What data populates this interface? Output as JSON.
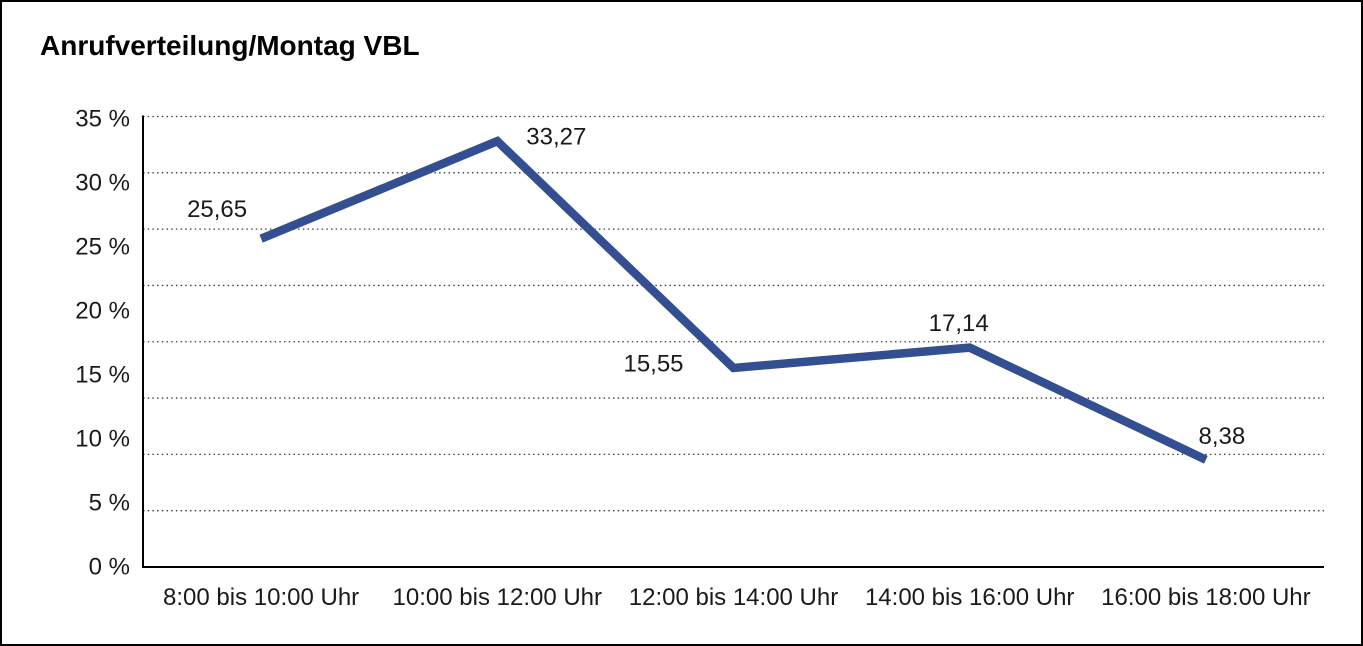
{
  "title": "Anrufverteilung/Montag VBL",
  "chart_data": {
    "type": "line",
    "title": "Anrufverteilung/Montag VBL",
    "categories": [
      "8:00 bis 10:00 Uhr",
      "10:00 bis 12:00 Uhr",
      "12:00 bis 14:00 Uhr",
      "14:00 bis 16:00 Uhr",
      "16:00 bis 18:00 Uhr"
    ],
    "values": [
      25.65,
      33.27,
      15.55,
      17.14,
      8.38
    ],
    "value_labels": [
      "25,65",
      "33,27",
      "15,55",
      "17,14",
      "8,38"
    ],
    "xlabel": "",
    "ylabel": "",
    "y_ticks": [
      "35 %",
      "30 %",
      "25 %",
      "20 %",
      "15 %",
      "10 %",
      "5 %",
      "0 %"
    ],
    "ylim": [
      0,
      35
    ],
    "y_tick_step": 5,
    "grid": "horizontal-dotted",
    "legend_position": "none",
    "line_color": "#334F91",
    "axis_color": "#000000",
    "grid_color": "#3c3c3c",
    "label_color": "#1a1a1a"
  }
}
